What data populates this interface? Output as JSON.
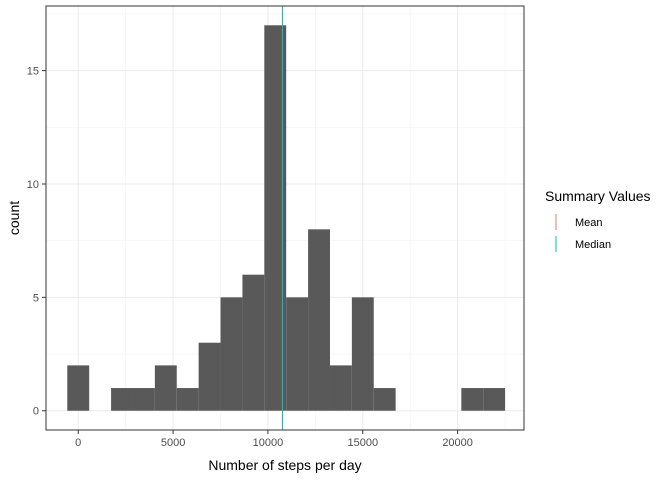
{
  "chart_data": {
    "type": "bar",
    "subtype": "histogram",
    "title": "",
    "xlabel": "Number of steps per day",
    "ylabel": "count",
    "bin_width": 1154,
    "bins": [
      {
        "center": 0,
        "count": 2
      },
      {
        "center": 1154,
        "count": 0
      },
      {
        "center": 2308,
        "count": 1
      },
      {
        "center": 3462,
        "count": 1
      },
      {
        "center": 4616,
        "count": 2
      },
      {
        "center": 5770,
        "count": 1
      },
      {
        "center": 6924,
        "count": 3
      },
      {
        "center": 8078,
        "count": 5
      },
      {
        "center": 9232,
        "count": 6
      },
      {
        "center": 10386,
        "count": 17
      },
      {
        "center": 11540,
        "count": 5
      },
      {
        "center": 12694,
        "count": 8
      },
      {
        "center": 13848,
        "count": 2
      },
      {
        "center": 15002,
        "count": 5
      },
      {
        "center": 16156,
        "count": 1
      },
      {
        "center": 17310,
        "count": 0
      },
      {
        "center": 18464,
        "count": 0
      },
      {
        "center": 19618,
        "count": 0
      },
      {
        "center": 20772,
        "count": 1
      },
      {
        "center": 21926,
        "count": 1
      }
    ],
    "bar_color": "#595959",
    "xlim": [
      -1700,
      23500
    ],
    "ylim": [
      -0.85,
      17.85
    ],
    "x_ticks": [
      0,
      5000,
      10000,
      15000,
      20000
    ],
    "x_tick_labels": [
      "0",
      "5000",
      "10000",
      "15000",
      "20000"
    ],
    "y_ticks": [
      0,
      5,
      10,
      15
    ],
    "y_tick_labels": [
      "0",
      "5",
      "10",
      "15"
    ],
    "grid": true,
    "reference_lines": [
      {
        "name": "Mean",
        "x": 10766,
        "color": "#F8766D"
      },
      {
        "name": "Median",
        "x": 10765,
        "color": "#00BFC4"
      }
    ],
    "legend": {
      "title": "Summary Values",
      "position": "right",
      "items": [
        {
          "label": "Mean",
          "color": "#F8766D"
        },
        {
          "label": "Median",
          "color": "#00BFC4"
        }
      ]
    }
  }
}
